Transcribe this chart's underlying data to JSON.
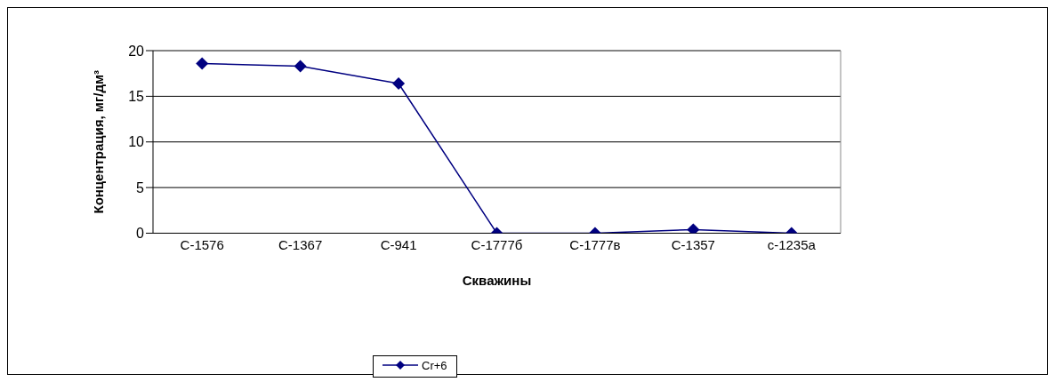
{
  "chart_data": {
    "type": "line",
    "xlabel": "Скважины",
    "ylabel": "Концентрация,  мг/дм³",
    "categories": [
      "С-1576",
      "С-1367",
      "С-941",
      "С-1777б",
      "С-1777в",
      "С-1357",
      "с-1235а"
    ],
    "series": [
      {
        "name": "Cr+6",
        "color": "#000080",
        "values": [
          18.6,
          18.3,
          16.4,
          0,
          0,
          0.4,
          0
        ]
      }
    ],
    "ylim": [
      0,
      20
    ],
    "yticks": [
      0,
      5,
      10,
      15,
      20
    ],
    "grid": "y",
    "legend": "bottom",
    "marker": "diamond",
    "line_style": "solid"
  }
}
